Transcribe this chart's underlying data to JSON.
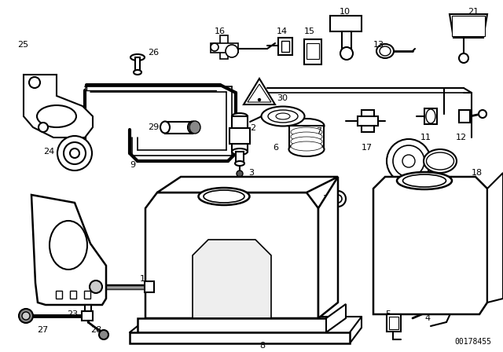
{
  "background_color": "#ffffff",
  "part_number_watermark": "00178455",
  "fig_width": 6.4,
  "fig_height": 4.48,
  "dpi": 100,
  "line_color": "#000000",
  "line_width": 1.0
}
